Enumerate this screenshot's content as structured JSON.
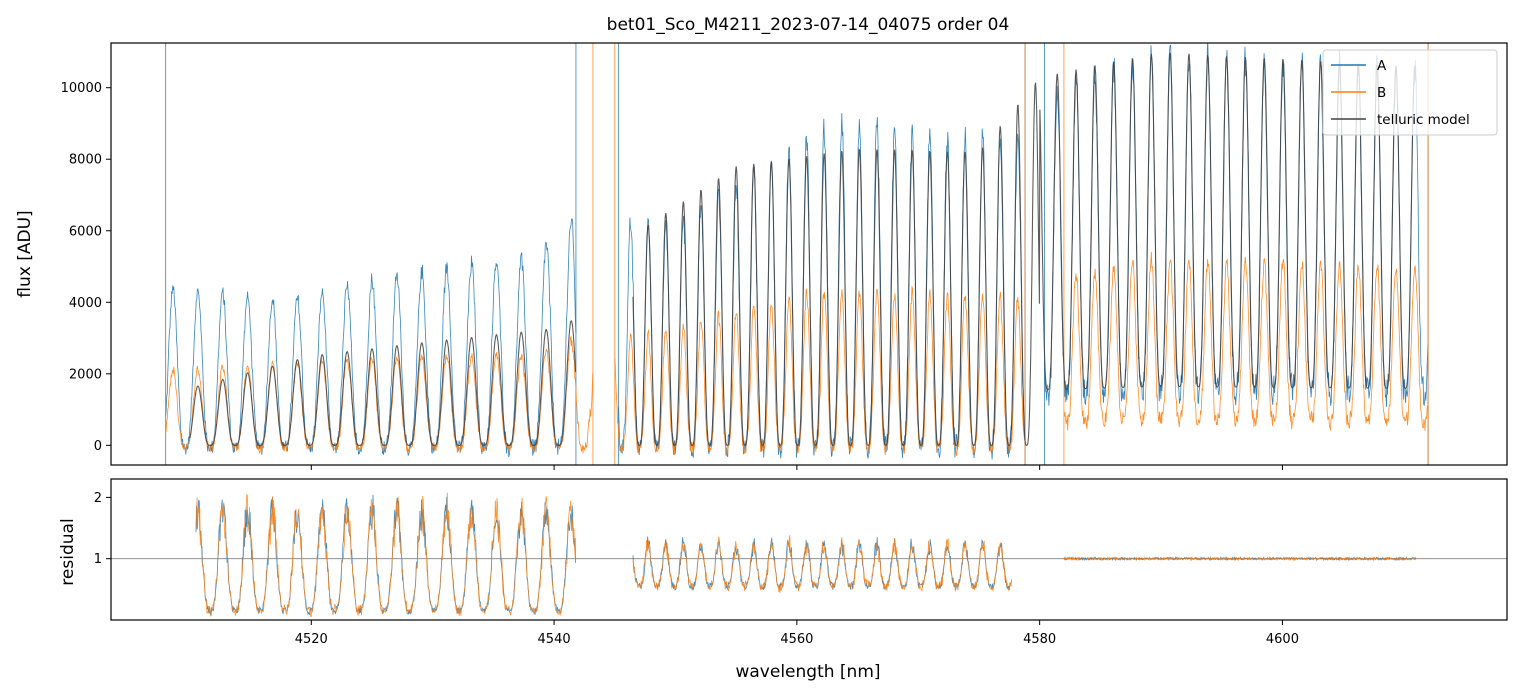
{
  "chart_data": [
    {
      "type": "line",
      "panel": "main",
      "title": "bet01_Sco_M4211_2023-07-14_04075  order 04",
      "xlabel": "",
      "ylabel": "flux [ADU]",
      "xlim": [
        4503.5,
        4618.5
      ],
      "ylim": [
        -550,
        11250
      ],
      "yticks": [
        0,
        2000,
        4000,
        6000,
        8000,
        10000
      ],
      "ytick_labels": [
        "0",
        "2000",
        "4000",
        "6000",
        "8000",
        "10000"
      ],
      "xticks": [
        4520,
        4540,
        4560,
        4580,
        4600
      ],
      "legend_loc": "upper right",
      "legend": [
        "A",
        "B",
        "telluric model"
      ],
      "colors": {
        "A": "#1f77b4",
        "B": "#ff7f0e",
        "telluric": "#404040"
      },
      "series": [
        {
          "name": "A",
          "segments": [
            [
              4508.0,
              4541.8
            ],
            [
              4545.3,
              4578.8
            ],
            [
              4580.4,
              4612.0
            ]
          ],
          "peak_levels": [
            [
              4510,
              4450
            ],
            [
              4518,
              4100
            ],
            [
              4525,
              4700
            ],
            [
              4532,
              5100
            ],
            [
              4538,
              5300
            ],
            [
              4541.8,
              6500
            ],
            [
              4545.5,
              6400
            ],
            [
              4550,
              6300
            ],
            [
              4555,
              7500
            ],
            [
              4560,
              8600
            ],
            [
              4565,
              9200
            ],
            [
              4570,
              8700
            ],
            [
              4575,
              8600
            ],
            [
              4578.8,
              8700
            ],
            [
              4581,
              10200
            ],
            [
              4590,
              11000
            ],
            [
              4600,
              10800
            ],
            [
              4611,
              10600
            ]
          ]
        },
        {
          "name": "B",
          "segments": [
            [
              4508.0,
              4543.2
            ],
            [
              4545.0,
              4578.8
            ],
            [
              4582.0,
              4612.0
            ]
          ],
          "peak_levels": [
            [
              4510,
              2200
            ],
            [
              4520,
              2450
            ],
            [
              4530,
              2550
            ],
            [
              4538,
              2600
            ],
            [
              4542.5,
              3100
            ],
            [
              4546,
              3000
            ],
            [
              4555,
              3800
            ],
            [
              4562,
              4400
            ],
            [
              4570,
              4300
            ],
            [
              4578.8,
              4200
            ],
            [
              4582,
              4800
            ],
            [
              4590,
              5300
            ],
            [
              4600,
              5200
            ],
            [
              4611,
              5000
            ]
          ]
        },
        {
          "name": "telluric model",
          "segments": [
            [
              4510.0,
              4541.8
            ],
            [
              4546.5,
              4611.0
            ]
          ],
          "peak_levels": [
            [
              4510,
              1600
            ],
            [
              4520,
              2500
            ],
            [
              4530,
              2900
            ],
            [
              4541,
              3300
            ],
            [
              4547,
              6000
            ],
            [
              4555,
              7800
            ],
            [
              4565,
              8300
            ],
            [
              4575,
              8200
            ],
            [
              4580,
              10300
            ],
            [
              4590,
              11000
            ],
            [
              4600,
              10800
            ],
            [
              4611,
              10600
            ]
          ]
        }
      ]
    },
    {
      "type": "line",
      "panel": "residual",
      "title": "",
      "xlabel": "wavelength [nm]",
      "ylabel": "residual",
      "xlim": [
        4503.5,
        4618.5
      ],
      "ylim": [
        0.0,
        2.3
      ],
      "yticks": [
        1,
        2
      ],
      "ytick_labels": [
        "1",
        "2"
      ],
      "xticks": [
        4520,
        4540,
        4560,
        4580,
        4600
      ],
      "xtick_labels": [
        "4520",
        "4540",
        "4560",
        "4580",
        "4600"
      ],
      "reference_line": 1,
      "series": [
        {
          "name": "A",
          "segments": [
            [
              4510.5,
              4541.8
            ],
            [
              4546.5,
              4577.7
            ],
            [
              4582.0,
              4611.0
            ]
          ]
        },
        {
          "name": "B",
          "segments": [
            [
              4510.5,
              4541.8
            ],
            [
              4546.5,
              4577.7
            ],
            [
              4582.0,
              4611.0
            ]
          ]
        }
      ]
    }
  ]
}
